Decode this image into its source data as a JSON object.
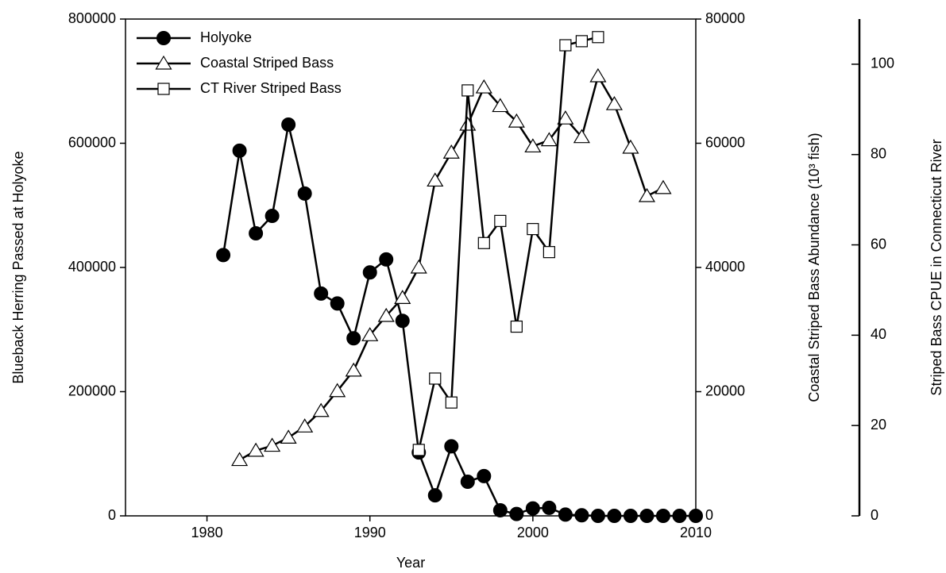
{
  "chart_data": {
    "type": "line",
    "xlabel": "Year",
    "ylabel": "Blueback Herring Passed at Holyoke",
    "y2label": "Coastal Striped Bass Abundance (10³ fish)",
    "y3label": "Striped Bass CPUE in Connecticut River",
    "xlim": [
      1975,
      2010
    ],
    "xticks": [
      1980,
      1990,
      2000,
      2010
    ],
    "ylim": [
      0,
      800000
    ],
    "yticks": [
      0,
      200000,
      400000,
      600000,
      800000
    ],
    "y2lim": [
      0,
      80000
    ],
    "y2ticks": [
      0,
      20000,
      40000,
      60000,
      80000
    ],
    "y3lim": [
      0,
      110
    ],
    "y3ticks": [
      0,
      20,
      40,
      60,
      80,
      100
    ],
    "legend": "upper left",
    "series": [
      {
        "name": "Holyoke",
        "color": "#000000",
        "marker": "circle",
        "axis": "y",
        "x": [
          1981,
          1982,
          1983,
          1984,
          1985,
          1986,
          1987,
          1988,
          1989,
          1990,
          1991,
          1992,
          1993,
          1994,
          1995,
          1996,
          1997,
          1998,
          1999,
          2000,
          2001,
          2002,
          2003,
          2004,
          2005,
          2006,
          2007,
          2008,
          2009,
          2010
        ],
        "values": [
          420000,
          588000,
          455000,
          483000,
          630000,
          519000,
          358000,
          342000,
          286000,
          392000,
          413000,
          314000,
          102000,
          33000,
          112000,
          55000,
          64000,
          9000,
          3000,
          12000,
          13000,
          2000,
          1000,
          0,
          0,
          0,
          0,
          0,
          0,
          0
        ]
      },
      {
        "name": "Coastal Striped Bass",
        "color": "#000000",
        "marker": "triangle",
        "axis": "y2",
        "x": [
          1982,
          1983,
          1984,
          1985,
          1986,
          1987,
          1988,
          1989,
          1990,
          1991,
          1992,
          1993,
          1994,
          1995,
          1996,
          1997,
          1998,
          1999,
          2000,
          2001,
          2002,
          2003,
          2004,
          2005,
          2006,
          2007,
          2008
        ],
        "values": [
          9000,
          10500,
          11300,
          12600,
          14400,
          16900,
          20100,
          23400,
          29100,
          32200,
          35100,
          40000,
          54000,
          58500,
          63000,
          69000,
          66000,
          63500,
          59500,
          60500,
          64000,
          61000,
          70800,
          66300,
          59300,
          51500,
          52800
        ]
      },
      {
        "name": "CT River Striped Bass",
        "color": "#000000",
        "marker": "square",
        "axis": "y3",
        "x": [
          1993,
          1994,
          1995,
          1996,
          1997,
          1998,
          1999,
          2000,
          2001,
          2002,
          2003,
          2004
        ],
        "values": [
          14.6,
          30.4,
          25.1,
          94.2,
          60.4,
          65.3,
          41.9,
          63.5,
          58.4,
          104.2,
          105.1,
          106.0
        ]
      }
    ]
  }
}
